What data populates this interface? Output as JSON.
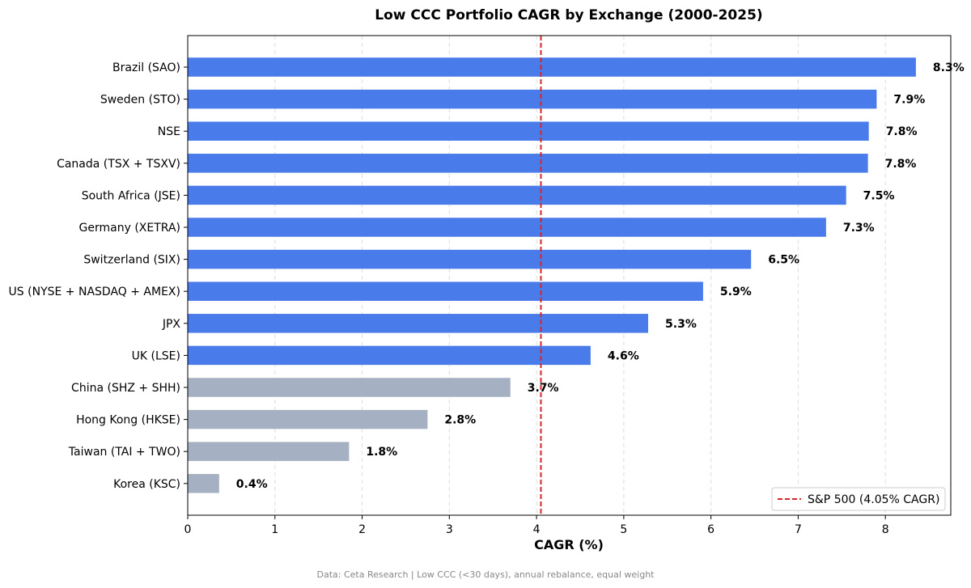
{
  "chart_data": {
    "type": "bar",
    "orientation": "horizontal",
    "title": "Low CCC Portfolio CAGR by Exchange (2000-2025)",
    "xlabel": "CAGR (%)",
    "ylabel": "",
    "xlim": [
      0,
      8.75
    ],
    "x_ticks": [
      0,
      1,
      2,
      3,
      4,
      5,
      6,
      7,
      8
    ],
    "grid": "vertical-dashed",
    "categories": [
      "Brazil (SAO)",
      "Sweden (STO)",
      "NSE",
      "Canada (TSX + TSXV)",
      "South Africa (JSE)",
      "Germany (XETRA)",
      "Switzerland (SIX)",
      "US (NYSE + NASDAQ + AMEX)",
      "JPX",
      "UK (LSE)",
      "China (SHZ + SHH)",
      "Hong Kong (HKSE)",
      "Taiwan (TAI + TWO)",
      "Korea (KSC)"
    ],
    "values": [
      8.35,
      7.9,
      7.81,
      7.8,
      7.55,
      7.32,
      6.46,
      5.91,
      5.28,
      4.62,
      3.7,
      2.75,
      1.85,
      0.36
    ],
    "value_labels": [
      "8.3%",
      "7.9%",
      "7.8%",
      "7.8%",
      "7.5%",
      "7.3%",
      "6.5%",
      "5.9%",
      "5.3%",
      "4.6%",
      "3.7%",
      "2.8%",
      "1.8%",
      "0.4%"
    ],
    "colors": {
      "above_benchmark": "#4a7bea",
      "below_benchmark": "#a5b0c2",
      "benchmark_line": "#d62728"
    },
    "reference_line": {
      "value": 4.05,
      "label": "S&P 500 (4.05% CAGR)"
    },
    "legend_placement": "bottom-right",
    "footer": "Data: Ceta Research | Low CCC (<30 days), annual rebalance, equal weight"
  }
}
